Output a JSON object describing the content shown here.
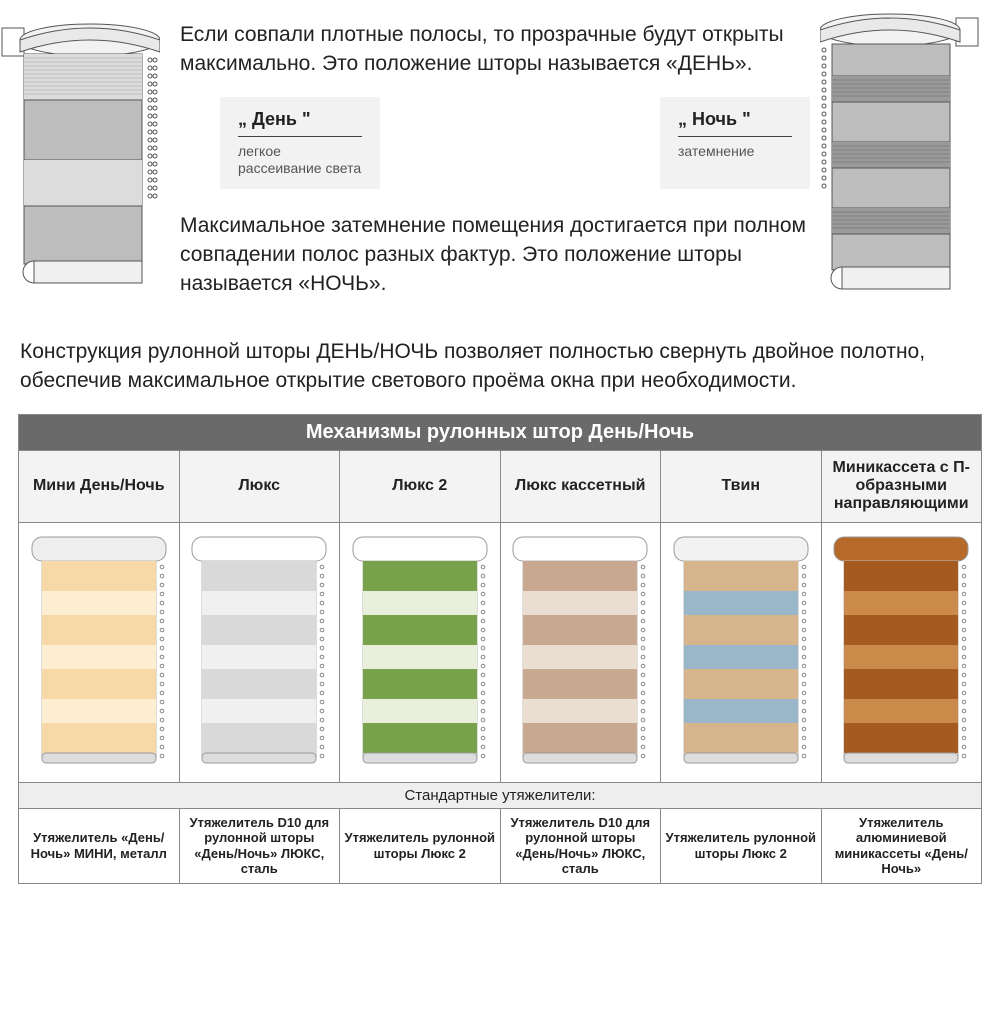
{
  "colors": {
    "table_header_bg": "#6a6a6a",
    "table_header_fg": "#ffffff",
    "col_head_bg": "#f3f3f3",
    "border": "#888888",
    "card_bg": "#f2f2f2",
    "text": "#222222",
    "muted": "#555555"
  },
  "top": {
    "para1": "Если совпали плотные полосы, то прозрачные будут открыты максимально.   Это положение шторы называется «ДЕНЬ».",
    "para2": "Максимальное затемнение помещения достигается при полном  совпадении полос разных фактур. Это положение шторы называется «НОЧЬ».",
    "mode_day_title": "„ День \"",
    "mode_day_desc": "легкое рассеивание света",
    "mode_night_title": "„ Ночь \"",
    "mode_night_desc": "затемнение"
  },
  "full_para": "Конструкция рулонной шторы ДЕНЬ/НОЧЬ  позволяет полностью  свернуть двойное полотно, обеспечив  максимальное  открытие светового проёма окна при необходимости.",
  "table": {
    "title": "Механизмы рулонных штор День/Ночь",
    "columns": [
      {
        "head": "Мини День/Ночь",
        "foot": "Утяжелитель «День/Ночь» МИНИ, металл",
        "stripe_color": "#f7d9a8",
        "alt_color": "#fdeed2",
        "casing": "#eeeeee"
      },
      {
        "head": "Люкс",
        "foot": "Утяжелитель D10 для рулонной шторы «День/Ночь»  ЛЮКС, сталь",
        "stripe_color": "#d9d9d9",
        "alt_color": "#f0f0f0",
        "casing": "#ffffff"
      },
      {
        "head": "Люкс 2",
        "foot": "Утяжелитель рулонной шторы Люкс 2",
        "stripe_color": "#77a24b",
        "alt_color": "#e8efdc",
        "casing": "#ffffff"
      },
      {
        "head": "Люкс кассетный",
        "foot": "Утяжелитель D10 для рулонной шторы «День/Ночь»  ЛЮКС, сталь",
        "stripe_color": "#c8a890",
        "alt_color": "#eaded3",
        "casing": "#ffffff"
      },
      {
        "head": "Твин",
        "foot": "Утяжелитель рулонной шторы Люкс 2",
        "stripe_color": "#d6b48c",
        "alt_color": "#9ab6c9",
        "casing": "#f2f2f2"
      },
      {
        "head": "Миникассета с П-образными направляющими",
        "foot": "Утяжелитель алюминиевой миникассеты «День/Ночь»",
        "stripe_color": "#a55a1f",
        "alt_color": "#c98a4a",
        "casing": "#b56a2a"
      }
    ],
    "subtitle": "Стандартные утяжелители:"
  },
  "diagrams": {
    "left_mode": "day",
    "right_mode": "night"
  }
}
